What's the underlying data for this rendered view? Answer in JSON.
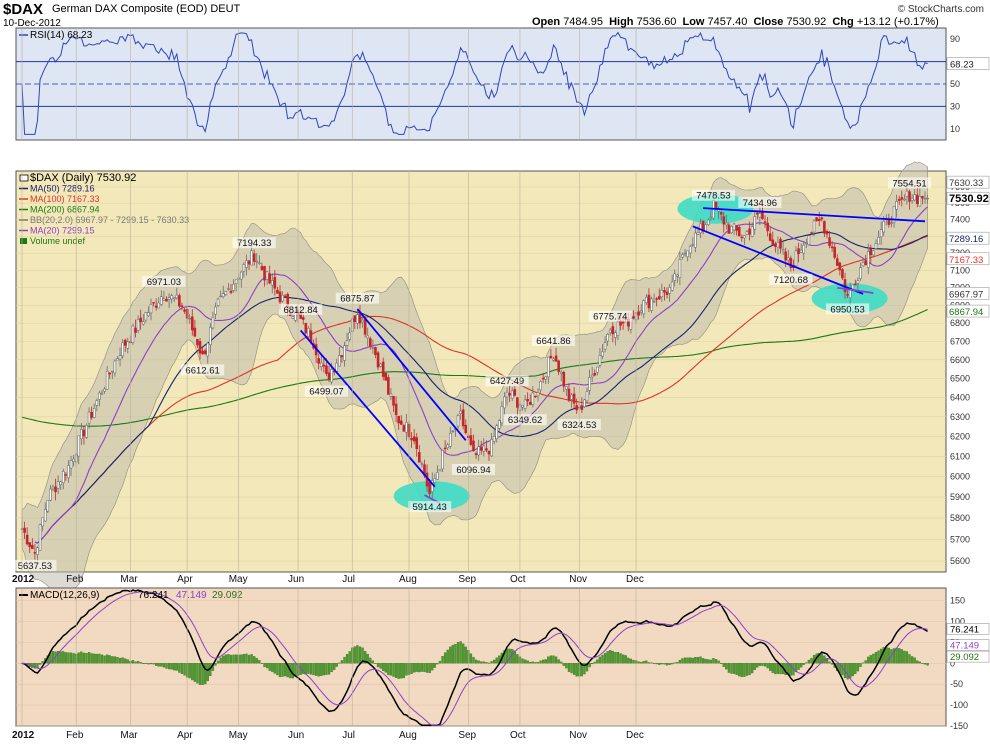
{
  "header": {
    "symbol": "$DAX",
    "name": "German DAX Composite (EOD)",
    "exchange": "DEUT",
    "date": "10-Dec-2012",
    "open_label": "Open",
    "open": "7484.95",
    "high_label": "High",
    "high": "7536.60",
    "low_label": "Low",
    "low": "7457.40",
    "close_label": "Close",
    "close": "7530.92",
    "chg_label": "Chg",
    "chg": "+13.12 (+0.17%)",
    "credit": "© StockCharts.com"
  },
  "colors": {
    "price_bg": "#f3e8b9",
    "rsi_bg": "#dde6f2",
    "macd_bg": "#f2d9c2",
    "candle_up": "#6d6d6d",
    "candle_down": "#c3272b",
    "ma50": "#16236f",
    "ma100": "#e0332a",
    "ma200": "#1b7a17",
    "ma20": "#8a42c9",
    "bands": "#bfbcad",
    "trendline": "#0000ff",
    "highlight": "#3fdcc4"
  },
  "legend": {
    "price": "$DAX (Daily) 7530.92",
    "ma50": "MA(50) 7289.16",
    "ma100": "MA(100) 7167.33",
    "ma200": "MA(200) 6867.94",
    "bb": "BB(20,2.0) 6967.97 - 7299.15 - 7630.33",
    "ma20": "MA(20) 7299.15",
    "volume": "Volume undef",
    "rsi": "RSI(14) 68.23",
    "macd_label": "MACD(12,26,9)",
    "macd_v1": "76.241",
    "macd_v2": "47.149",
    "macd_v3": "29.092"
  },
  "chart_data": {
    "type": "candlestick",
    "x_months": [
      "2012",
      "Feb",
      "Mar",
      "Apr",
      "May",
      "Jun",
      "Jul",
      "Aug",
      "Sep",
      "Oct",
      "Nov",
      "Dec"
    ],
    "price_axis": {
      "ylim": [
        5550,
        7700
      ],
      "ticks": [
        5600,
        5700,
        5800,
        5900,
        6000,
        6100,
        6200,
        6300,
        6400,
        6500,
        6600,
        6700,
        6800,
        6900,
        7000,
        7100,
        7200,
        7300,
        7400,
        7500,
        7600
      ],
      "scale": "log"
    },
    "close_path": [
      [
        0,
        5750
      ],
      [
        5,
        5637.53
      ],
      [
        10,
        5900
      ],
      [
        18,
        6050
      ],
      [
        28,
        6350
      ],
      [
        38,
        6650
      ],
      [
        48,
        6850
      ],
      [
        55,
        6971.03
      ],
      [
        62,
        6900
      ],
      [
        68,
        6700
      ],
      [
        70,
        6612.61
      ],
      [
        76,
        6900
      ],
      [
        84,
        7080
      ],
      [
        90,
        7194.33
      ],
      [
        95,
        7050
      ],
      [
        100,
        6950
      ],
      [
        108,
        6812.84
      ],
      [
        113,
        6700
      ],
      [
        118,
        6499.07
      ],
      [
        124,
        6650
      ],
      [
        130,
        6875.87
      ],
      [
        138,
        6600
      ],
      [
        145,
        6300
      ],
      [
        152,
        6200
      ],
      [
        158,
        5914.43
      ],
      [
        163,
        6100
      ],
      [
        170,
        6300
      ],
      [
        175,
        6096.94
      ],
      [
        182,
        6150
      ],
      [
        188,
        6427.49
      ],
      [
        195,
        6349.62
      ],
      [
        200,
        6450
      ],
      [
        206,
        6641.86
      ],
      [
        212,
        6400
      ],
      [
        216,
        6324.53
      ],
      [
        222,
        6550
      ],
      [
        228,
        6775.74
      ],
      [
        234,
        6800
      ],
      [
        240,
        6900
      ],
      [
        246,
        6950
      ],
      [
        252,
        7000
      ],
      [
        258,
        7250
      ],
      [
        264,
        7350
      ],
      [
        268,
        7478.53
      ],
      [
        274,
        7350
      ],
      [
        280,
        7300
      ],
      [
        286,
        7434.96
      ],
      [
        292,
        7250
      ],
      [
        298,
        7120.68
      ],
      [
        304,
        7300
      ],
      [
        310,
        7400
      ],
      [
        316,
        7150
      ],
      [
        320,
        6950.53
      ],
      [
        326,
        7150
      ],
      [
        332,
        7300
      ],
      [
        338,
        7450
      ],
      [
        344,
        7554.51
      ],
      [
        348,
        7530.92
      ]
    ],
    "annotations": [
      {
        "label": "5637.53",
        "idx": 5,
        "value": 5637.53
      },
      {
        "label": "6971.03",
        "idx": 55,
        "value": 6971.03
      },
      {
        "label": "6612.61",
        "idx": 70,
        "value": 6612.61
      },
      {
        "label": "7194.33",
        "idx": 90,
        "value": 7194.33
      },
      {
        "label": "6812.84",
        "idx": 108,
        "value": 6812.84
      },
      {
        "label": "6499.07",
        "idx": 118,
        "value": 6499.07
      },
      {
        "label": "6875.87",
        "idx": 130,
        "value": 6875.87
      },
      {
        "label": "5914.43",
        "idx": 158,
        "value": 5914.43
      },
      {
        "label": "6096.94",
        "idx": 175,
        "value": 6096.94
      },
      {
        "label": "6427.49",
        "idx": 188,
        "value": 6427.49
      },
      {
        "label": "6349.62",
        "idx": 195,
        "value": 6349.62
      },
      {
        "label": "6641.86",
        "idx": 206,
        "value": 6641.86
      },
      {
        "label": "6324.53",
        "idx": 216,
        "value": 6324.53
      },
      {
        "label": "6775.74",
        "idx": 228,
        "value": 6775.74
      },
      {
        "label": "7478.53",
        "idx": 268,
        "value": 7478.53
      },
      {
        "label": "7434.96",
        "idx": 286,
        "value": 7434.96
      },
      {
        "label": "7120.68",
        "idx": 298,
        "value": 7120.68
      },
      {
        "label": "6950.53",
        "idx": 320,
        "value": 6950.53
      },
      {
        "label": "7554.51",
        "idx": 344,
        "value": 7554.51
      }
    ],
    "right_labels": [
      "7630.33",
      "7530.92",
      "7289.16",
      "7167.33",
      "6967.97",
      "6867.94"
    ],
    "rsi": {
      "ylim": [
        0,
        100
      ],
      "ticks": [
        10,
        30,
        50,
        70,
        90
      ],
      "levels": [
        30,
        50,
        70
      ],
      "last": 68.23
    },
    "macd": {
      "ylim": [
        -150,
        180
      ],
      "ticks": [
        -150,
        -100,
        -50,
        0,
        50,
        100,
        150
      ]
    }
  }
}
